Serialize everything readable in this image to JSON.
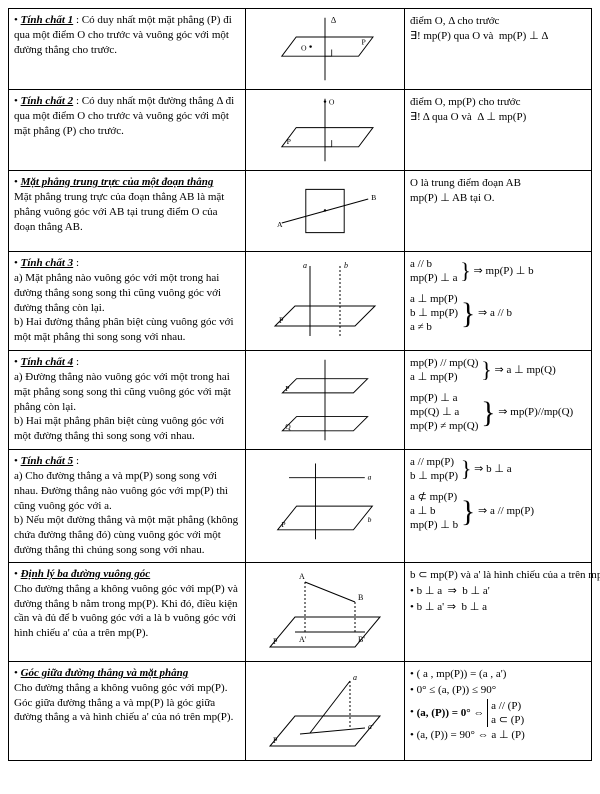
{
  "rows": [
    {
      "title": "Tính chất 1",
      "body": " : Có duy nhất một mặt phẳng (P) đi qua một điểm O cho trước và vuông góc với một đường thẳng cho trước.",
      "math": "<div class='stack'><div class='mrow'>điểm O, Δ cho trước</div><div class='mrow'>∃! mp(P) qua O và &nbsp;mp(P) ⊥ Δ</div></div>",
      "figure": "fig1"
    },
    {
      "title": "Tính chất 2",
      "body": " : Có duy nhất một đường thẳng Δ đi qua một điểm O cho trước và vuông góc với một mặt phẳng (P) cho trước.",
      "math": "<div class='stack'><div class='mrow'>điểm O, mp(P) cho trước</div><div class='mrow'>∃! Δ qua O và &nbsp;Δ ⊥ mp(P)</div></div>",
      "figure": "fig2"
    },
    {
      "title": "Mặt phẳng trung trực của một đoạn thẳng",
      "body": "<br>Mặt phẳng trung trực của đoạn thẳng AB là mặt phẳng vuông góc với AB tại trung điểm O của đoạn thẳng AB.",
      "math": "<div class='stack'><div class='mrow'>O là trung điểm đoạn AB</div><div class='mrow'>mp(P) ⊥ AB tại O.</div></div>",
      "figure": "fig3"
    },
    {
      "title": "Tính chất 3",
      "body": " :<br>a) Mặt phẳng nào vuông góc với một trong hai đường thẳng song song thì cũng vuông góc với đường thẳng còn lại.<br>b) Hai đường thẳng phân biệt cùng vuông góc với một mặt phẳng thì song song với nhau.",
      "math": "<div class='mrow'><span class='stack'><div>a // b</div><div>mp(P) ⊥ a</div></span> <span class='brace'>}</span> ⇒ mp(P) ⊥ b</div><div class='mrow' style='margin-top:6px'><span class='stack'><div>a ⊥ mp(P)</div><div>b ⊥ mp(P)</div><div>a ≠ b</div></span> <span class='brace' style='font-size:30px'>}</span> ⇒ a // b</div>",
      "figure": "fig4"
    },
    {
      "title": "Tính chất 4",
      "body": " :<br>a) Đường thẳng nào vuông góc với một trong hai mặt phẳng song song thì cũng vuông góc với mặt phẳng còn lại.<br>b) Hai mặt phẳng phân biệt cùng vuông góc với một đường thẳng thì song song với nhau.",
      "math": "<div class='mrow'><span class='stack'><div>mp(P) // mp(Q)</div><div>a ⊥ mp(P)</div></span> <span class='brace'>}</span> ⇒ a ⊥ mp(Q)</div><div class='mrow' style='margin-top:6px'><span class='stack'><div>mp(P) ⊥ a</div><div>mp(Q) ⊥ a</div><div>mp(P) ≠ mp(Q)</div></span> <span class='brace' style='font-size:30px'>}</span> ⇒ mp(P)//mp(Q)</div>",
      "figure": "fig5"
    },
    {
      "title": "Tính chất 5",
      "body": " :<br>a) Cho đường thẳng a và mp(P) song song với nhau. Đường thẳng nào vuông góc với mp(P) thì cũng vuông góc với a.<br>b) Nếu một đường thẳng và một mặt phẳng (không chứa đường thẳng đó) cùng vuông góc với một đường thẳng thì chúng song song với nhau.",
      "math": "<div class='mrow'><span class='stack'><div>a // mp(P)</div><div>b ⊥ mp(P)</div></span> <span class='brace'>}</span> ⇒ b ⊥ a</div><div class='mrow' style='margin-top:6px'><span class='stack'><div>a ⊄ mp(P)</div><div>a ⊥ b</div><div>mp(P) ⊥ b</div></span> <span class='brace' style='font-size:30px'>}</span> ⇒ a // mp(P)</div>",
      "figure": "fig6"
    },
    {
      "title": "Định lý ba đường vuông góc",
      "body": "<br>Cho đường thẳng a không vuông góc với mp(P) và đường thẳng b nằm trong mp(P). Khi đó, điều kiện cần và đủ để b vuông góc với a là b vuông góc với hình chiếu a' của a trên mp(P).",
      "math": "<div class='mrow'>b ⊂ mp(P) và a' là hình chiếu của a trên mp(P). Nếu :</div><div class='mrow bullet'>b ⊥ a &nbsp;⇒&nbsp; b ⊥ a'</div><div class='mrow bullet'>b ⊥ a' ⇒&nbsp; b ⊥ a</div>",
      "figure": "fig7"
    },
    {
      "title": "Góc giữa đường thẳng và mặt phẳng",
      "body": "<br>Cho đường thẳng a không vuông góc với mp(P). Góc giữa đường thẳng a và mp(P) là góc giữa đường thẳng a và hình chiếu a' của nó trên mp(P).",
      "math": "<div class='mrow bullet'>( a , mp(P)) = (a , a')</div><div class='mrow bullet'>0° ≤ (a, (P)) ≤ 90°</div><div class='mrow bullet'><b>(a, (P)) = 0°</b> ⇔ <span class='stack' style='border-left:1px solid #000;padding-left:3px'><div>a // (P)</div><div>a ⊂ (P)</div></span></div><div class='mrow bullet'>(a, (P)) = 90° ⇔ a ⊥ (P)</div>",
      "figure": "fig8"
    }
  ]
}
